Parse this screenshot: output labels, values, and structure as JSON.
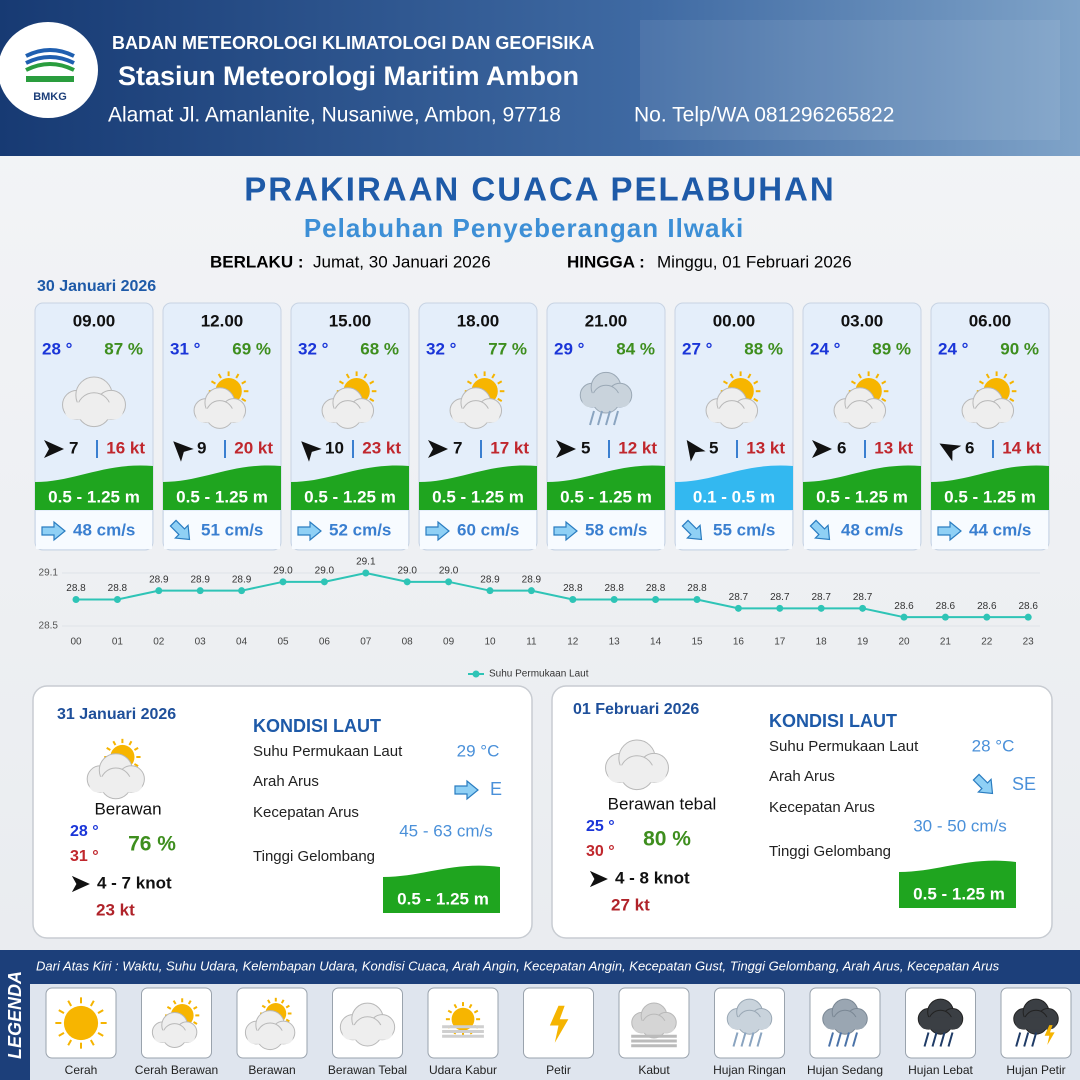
{
  "header": {
    "organization": "BADAN METEOROLOGI KLIMATOLOGI DAN GEOFISIKA",
    "station": "Stasiun Meteorologi Maritim Ambon",
    "address": "Alamat Jl. Amanlanite, Nusaniwe, Ambon, 97718",
    "phone": "No. Telp/WA  081296265822",
    "logo": "BMKG"
  },
  "title": "PRAKIRAAN CUACA PELABUHAN",
  "subtitle": "Pelabuhan Penyeberangan Ilwaki",
  "validity": {
    "from_label": "BERLAKU :",
    "from": "Jumat, 30 Januari 2026",
    "to_label": "HINGGA :",
    "to": "Minggu, 01 Februari 2026"
  },
  "forecast_date": "30 Januari 2026",
  "forecasts": [
    {
      "time": "09.00",
      "temp": "28 °",
      "humidity": "87 %",
      "wind": "7",
      "gust": "16 kt",
      "wave": "0.5 - 1.25 m",
      "wave_color": "#1fa51f",
      "current": "48 cm/s"
    },
    {
      "time": "12.00",
      "temp": "31 °",
      "humidity": "69 %",
      "wind": "9",
      "gust": "20 kt",
      "wave": "0.5 - 1.25 m",
      "wave_color": "#1fa51f",
      "current": "51 cm/s"
    },
    {
      "time": "15.00",
      "temp": "32 °",
      "humidity": "68 %",
      "wind": "10",
      "gust": "23 kt",
      "wave": "0.5 - 1.25 m",
      "wave_color": "#1fa51f",
      "current": "52 cm/s"
    },
    {
      "time": "18.00",
      "temp": "32 °",
      "humidity": "77 %",
      "wind": "7",
      "gust": "17 kt",
      "wave": "0.5 - 1.25 m",
      "wave_color": "#1fa51f",
      "current": "60 cm/s"
    },
    {
      "time": "21.00",
      "temp": "29 °",
      "humidity": "84 %",
      "wind": "5",
      "gust": "12 kt",
      "wave": "0.5 - 1.25 m",
      "wave_color": "#1fa51f",
      "current": "58 cm/s"
    },
    {
      "time": "00.00",
      "temp": "27 °",
      "humidity": "88 %",
      "wind": "5",
      "gust": "13 kt",
      "wave": "0.1 - 0.5 m",
      "wave_color": "#33b8f0",
      "current": "55 cm/s"
    },
    {
      "time": "03.00",
      "temp": "24 °",
      "humidity": "89 %",
      "wind": "6",
      "gust": "13 kt",
      "wave": "0.5 - 1.25 m",
      "wave_color": "#1fa51f",
      "current": "48 cm/s"
    },
    {
      "time": "06.00",
      "temp": "24 °",
      "humidity": "90 %",
      "wind": "6",
      "gust": "14 kt",
      "wave": "0.5 - 1.25 m",
      "wave_color": "#1fa51f",
      "current": "44 cm/s"
    }
  ],
  "chart_data": {
    "type": "line",
    "categories": [
      "00",
      "01",
      "02",
      "03",
      "04",
      "05",
      "06",
      "07",
      "08",
      "09",
      "10",
      "11",
      "12",
      "13",
      "14",
      "15",
      "16",
      "17",
      "18",
      "19",
      "20",
      "21",
      "22",
      "23"
    ],
    "series": [
      {
        "name": "Suhu Permukaan Laut",
        "color": "#2ec4b6",
        "values": [
          28.8,
          28.8,
          28.9,
          28.9,
          28.9,
          29.0,
          29.0,
          29.1,
          29.0,
          29.0,
          28.9,
          28.9,
          28.8,
          28.8,
          28.8,
          28.8,
          28.7,
          28.7,
          28.7,
          28.7,
          28.6,
          28.6,
          28.6,
          28.6
        ],
        "value_labels": [
          "28.8",
          "28.8",
          "28.9",
          "28.9",
          "28.9",
          "29.0",
          "29.0",
          "29.1",
          "29.0",
          "29.0",
          "28.9",
          "28.9",
          "28.8",
          "28.8",
          "28.8",
          "28.8",
          "28.7",
          "28.7",
          "28.7",
          "28.7",
          "28.6",
          "28.6",
          "28.6",
          "28.6"
        ]
      }
    ],
    "ylim": [
      28.5,
      29.1
    ],
    "yticks": [
      28.5,
      29.1
    ],
    "grid": true
  },
  "daily": [
    {
      "date": "31 Januari 2026",
      "weather": "Berawan",
      "temp_min": "28 °",
      "temp_max": "31 °",
      "humidity": "76 %",
      "wind": "4  - 7 knot",
      "gust": "23 kt",
      "section": "KONDISI LAUT",
      "rows": [
        {
          "label": "Suhu Permukaan Laut",
          "value": "29 °C"
        },
        {
          "label": "Arah Arus",
          "value": "E"
        },
        {
          "label": "Kecepatan Arus",
          "value": "45 - 63 cm/s"
        },
        {
          "label": "Tinggi Gelombang",
          "value": "0.5 - 1.25 m"
        }
      ]
    },
    {
      "date": "01 Februari 2026",
      "weather": "Berawan tebal",
      "temp_min": "25 °",
      "temp_max": "30 °",
      "humidity": "80 %",
      "wind": "4  - 8 knot",
      "gust": "27 kt",
      "section": "KONDISI LAUT",
      "rows": [
        {
          "label": "Suhu Permukaan Laut",
          "value": "28 °C"
        },
        {
          "label": "Arah Arus",
          "value": "SE"
        },
        {
          "label": "Kecepatan Arus",
          "value": "30 - 50 cm/s"
        },
        {
          "label": "Tinggi Gelombang",
          "value": "0.5 - 1.25 m"
        }
      ]
    }
  ],
  "legend": {
    "title": "LEGENDA",
    "description": "Dari Atas Kiri : Waktu, Suhu Udara, Kelembapan Udara, Kondisi Cuaca, Arah Angin, Kecepatan Angin, Kecepatan Gust, Tinggi Gelombang, Arah Arus, Kecepatan Arus",
    "items": [
      "Cerah",
      "Cerah Berawan",
      "Berawan",
      "Berawan Tebal",
      "Udara Kabur",
      "Petir",
      "Kabut",
      "Hujan Ringan",
      "Hujan Sedang",
      "Hujan Lebat",
      "Hujan Petir"
    ]
  }
}
